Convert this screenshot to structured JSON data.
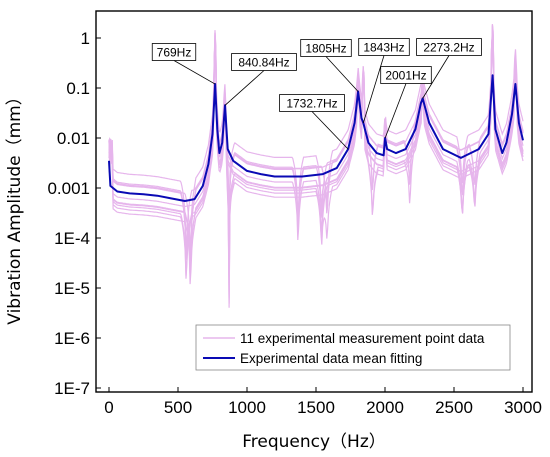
{
  "chart_data": {
    "type": "line",
    "title": "",
    "xlabel": "Frequency（Hz）",
    "ylabel": "Vibration Amplitude（mm）",
    "x_range": [
      0,
      3000
    ],
    "x_ticks": [
      0,
      500,
      1000,
      1500,
      2000,
      2500,
      3000
    ],
    "y_scale": "log",
    "y_range": [
      1e-07,
      3
    ],
    "y_ticks": [
      1,
      0.1,
      0.01,
      0.001,
      0.0001,
      1e-05,
      1e-06,
      1e-07
    ],
    "y_tick_labels": [
      "1",
      "0.1",
      "0.01",
      "0.001",
      "1E-4",
      "1E-5",
      "1E-6",
      "1E-7"
    ],
    "grid": false,
    "legend_position": "bottom-right",
    "series": [
      {
        "name": "11 experimental measurement point data",
        "color": "#e6b5ec",
        "style": "thin",
        "count": 11
      },
      {
        "name": "Experimental data mean fitting",
        "color": "#0a0ab4",
        "style": "thick",
        "points": [
          [
            0,
            0.0035
          ],
          [
            10,
            0.0011
          ],
          [
            60,
            0.00085
          ],
          [
            150,
            0.00078
          ],
          [
            250,
            0.00075
          ],
          [
            350,
            0.0007
          ],
          [
            450,
            0.00062
          ],
          [
            550,
            0.00055
          ],
          [
            620,
            0.0006
          ],
          [
            680,
            0.0011
          ],
          [
            720,
            0.003
          ],
          [
            750,
            0.012
          ],
          [
            769,
            0.12
          ],
          [
            785,
            0.015
          ],
          [
            800,
            0.005
          ],
          [
            820,
            0.008
          ],
          [
            840.84,
            0.045
          ],
          [
            860,
            0.006
          ],
          [
            900,
            0.0035
          ],
          [
            1000,
            0.0022
          ],
          [
            1100,
            0.0019
          ],
          [
            1200,
            0.0017
          ],
          [
            1400,
            0.0017
          ],
          [
            1550,
            0.0019
          ],
          [
            1650,
            0.0025
          ],
          [
            1732.7,
            0.006
          ],
          [
            1780,
            0.02
          ],
          [
            1805,
            0.085
          ],
          [
            1830,
            0.025
          ],
          [
            1843,
            0.02
          ],
          [
            1880,
            0.008
          ],
          [
            1940,
            0.005
          ],
          [
            1990,
            0.0045
          ],
          [
            2001,
            0.01
          ],
          [
            2015,
            0.006
          ],
          [
            2080,
            0.005
          ],
          [
            2150,
            0.006
          ],
          [
            2220,
            0.015
          ],
          [
            2260,
            0.05
          ],
          [
            2273.2,
            0.062
          ],
          [
            2320,
            0.02
          ],
          [
            2420,
            0.006
          ],
          [
            2550,
            0.004
          ],
          [
            2680,
            0.006
          ],
          [
            2750,
            0.012
          ],
          [
            2780,
            0.18
          ],
          [
            2800,
            0.015
          ],
          [
            2850,
            0.005
          ],
          [
            2880,
            0.008
          ],
          [
            2920,
            0.03
          ],
          [
            2945,
            0.12
          ],
          [
            2970,
            0.02
          ],
          [
            3000,
            0.009
          ]
        ]
      }
    ],
    "annotations": [
      {
        "label": "769Hz",
        "x": 769,
        "y": 0.12
      },
      {
        "label": "840.84Hz",
        "x": 840.84,
        "y": 0.045
      },
      {
        "label": "1732.7Hz",
        "x": 1732.7,
        "y": 0.006
      },
      {
        "label": "1805Hz",
        "x": 1805,
        "y": 0.085
      },
      {
        "label": "1843Hz",
        "x": 1843,
        "y": 0.02
      },
      {
        "label": "2001Hz",
        "x": 2001,
        "y": 0.01
      },
      {
        "label": "2273.2Hz",
        "x": 2273.2,
        "y": 0.062
      }
    ]
  }
}
